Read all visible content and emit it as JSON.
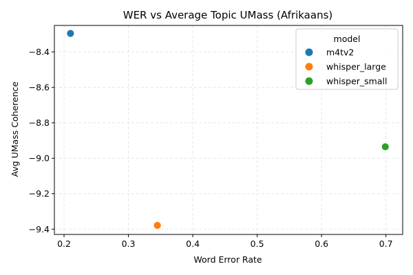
{
  "chart_data": {
    "type": "scatter",
    "title": "WER vs Average Topic UMass (Afrikaans)",
    "xlabel": "Word Error Rate",
    "ylabel": "Avg UMass Coherence",
    "xlim": [
      0.185,
      0.726
    ],
    "ylim": [
      -9.43,
      -8.25
    ],
    "xticks": [
      0.2,
      0.3,
      0.4,
      0.5,
      0.6,
      0.7
    ],
    "xtick_labels": [
      "0.2",
      "0.3",
      "0.4",
      "0.5",
      "0.6",
      "0.7"
    ],
    "yticks": [
      -8.4,
      -8.6,
      -8.8,
      -9.0,
      -9.2,
      -9.4
    ],
    "ytick_labels": [
      "−8.4",
      "−8.6",
      "−8.8",
      "−9.0",
      "−9.2",
      "−9.4"
    ],
    "grid": true,
    "legend": {
      "title": "model",
      "placement": "top-right"
    },
    "series": [
      {
        "name": "m4tv2",
        "color": "#1f77b4",
        "x": [
          0.21
        ],
        "y": [
          -8.295
        ]
      },
      {
        "name": "whisper_large",
        "color": "#ff7f0e",
        "x": [
          0.345
        ],
        "y": [
          -9.379
        ]
      },
      {
        "name": "whisper_small",
        "color": "#2ca02c",
        "x": [
          0.699
        ],
        "y": [
          -8.935
        ]
      }
    ]
  }
}
